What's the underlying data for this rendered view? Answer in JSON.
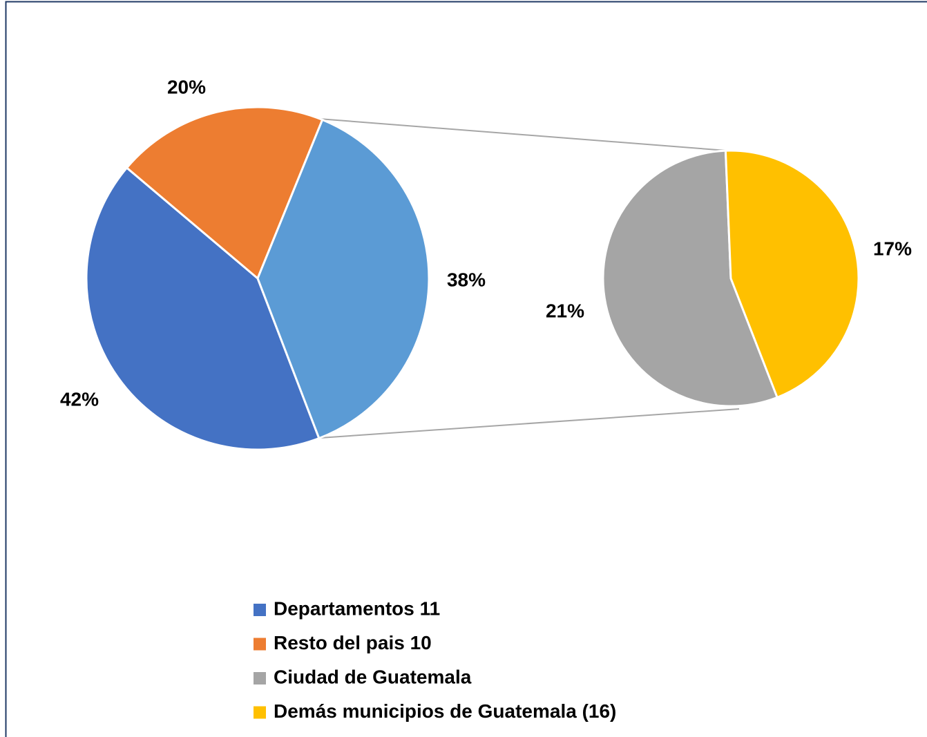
{
  "chart_data": {
    "type": "pie-of-pie",
    "main": {
      "categories": [
        "Departamentos 11",
        "Resto del pais 10",
        null
      ],
      "values": [
        42,
        20,
        38
      ],
      "value_labels": [
        "42%",
        "20%",
        "38%"
      ],
      "colors": [
        "#4472c4",
        "#ed7d31",
        "#5b9bd5"
      ]
    },
    "secondary": {
      "categories": [
        "Ciudad de Guatemala",
        "Demás municipios de Guatemala (16)"
      ],
      "values": [
        21,
        17
      ],
      "value_labels": [
        "21%",
        "17%"
      ],
      "colors": [
        "#a5a5a5",
        "#ffc000"
      ]
    },
    "legend": "bottom"
  }
}
